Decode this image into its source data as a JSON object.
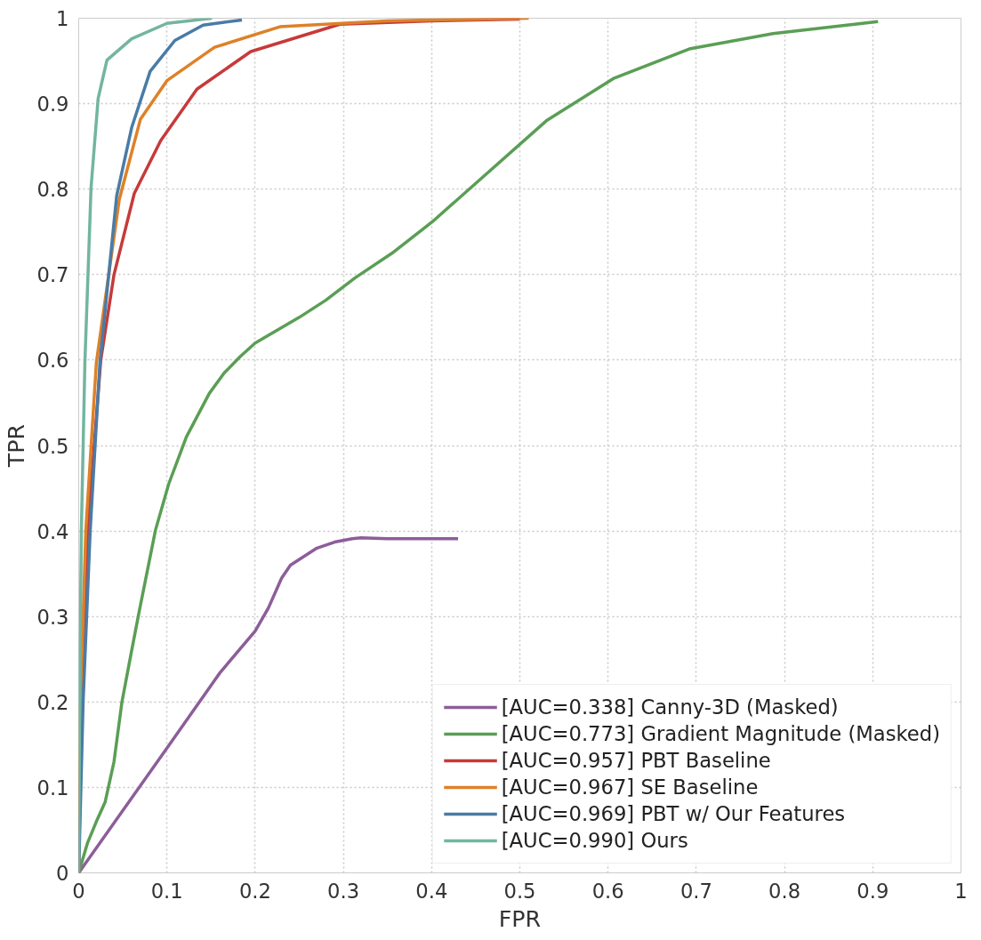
{
  "chart_data": {
    "type": "line",
    "xlabel": "FPR",
    "ylabel": "TPR",
    "xlim": [
      0,
      1
    ],
    "ylim": [
      0,
      1
    ],
    "xticks": [
      0,
      0.1,
      0.2,
      0.3,
      0.4,
      0.5,
      0.6,
      0.7,
      0.8,
      0.9,
      1
    ],
    "yticks": [
      0,
      0.1,
      0.2,
      0.3,
      0.4,
      0.5,
      0.6,
      0.7,
      0.8,
      0.9,
      1
    ],
    "grid": true,
    "legend": "bottom right",
    "line_style": "solid",
    "marker": "none",
    "series": [
      {
        "name": "[AUC=0.338] Canny-3D (Masked)",
        "color": "#8c5e99",
        "x": [
          0,
          0.1,
          0.16,
          0.2,
          0.215,
          0.23,
          0.24,
          0.27,
          0.29,
          0.31,
          0.32,
          0.35,
          0.43
        ],
        "values": [
          0,
          0.146,
          0.234,
          0.283,
          0.31,
          0.345,
          0.36,
          0.38,
          0.387,
          0.391,
          0.392,
          0.391,
          0.391
        ]
      },
      {
        "name": "[AUC=0.773] Gradient Magnitude (Masked)",
        "color": "#5a9e55",
        "x": [
          0,
          0.01,
          0.02,
          0.03,
          0.04,
          0.049,
          0.06,
          0.068,
          0.087,
          0.102,
          0.122,
          0.148,
          0.165,
          0.183,
          0.2,
          0.25,
          0.28,
          0.313,
          0.355,
          0.401,
          0.53,
          0.607,
          0.692,
          0.787,
          0.906
        ],
        "values": [
          0,
          0.035,
          0.06,
          0.083,
          0.13,
          0.2,
          0.26,
          0.303,
          0.401,
          0.455,
          0.51,
          0.561,
          0.585,
          0.604,
          0.62,
          0.65,
          0.67,
          0.696,
          0.725,
          0.762,
          0.88,
          0.93,
          0.964,
          0.982,
          0.996
        ]
      },
      {
        "name": "[AUC=0.957] PBT Baseline",
        "color": "#c73a3a",
        "x": [
          0,
          0.003,
          0.01,
          0.025,
          0.04,
          0.063,
          0.093,
          0.134,
          0.195,
          0.296,
          0.4,
          0.5
        ],
        "values": [
          0,
          0.2,
          0.4,
          0.6,
          0.7,
          0.795,
          0.857,
          0.917,
          0.961,
          0.993,
          0.997,
          0.999
        ]
      },
      {
        "name": "[AUC=0.967] SE Baseline",
        "color": "#de8128",
        "x": [
          0,
          0.002,
          0.008,
          0.02,
          0.046,
          0.07,
          0.1,
          0.154,
          0.228,
          0.35,
          0.51
        ],
        "values": [
          0,
          0.2,
          0.4,
          0.597,
          0.788,
          0.882,
          0.927,
          0.966,
          0.99,
          0.997,
          1.0
        ]
      },
      {
        "name": "[AUC=0.969] PBT w/ Our Features",
        "color": "#4a7ba6",
        "x": [
          0,
          0.005,
          0.013,
          0.024,
          0.043,
          0.06,
          0.081,
          0.109,
          0.141,
          0.185
        ],
        "values": [
          0,
          0.2,
          0.4,
          0.597,
          0.792,
          0.872,
          0.938,
          0.974,
          0.992,
          0.998
        ]
      },
      {
        "name": "[AUC=0.990] Ours",
        "color": "#72b5a0",
        "x": [
          0,
          0.001,
          0.003,
          0.007,
          0.014,
          0.022,
          0.032,
          0.06,
          0.1,
          0.151
        ],
        "values": [
          0,
          0.2,
          0.4,
          0.597,
          0.802,
          0.906,
          0.951,
          0.976,
          0.994,
          1.0
        ]
      }
    ]
  }
}
